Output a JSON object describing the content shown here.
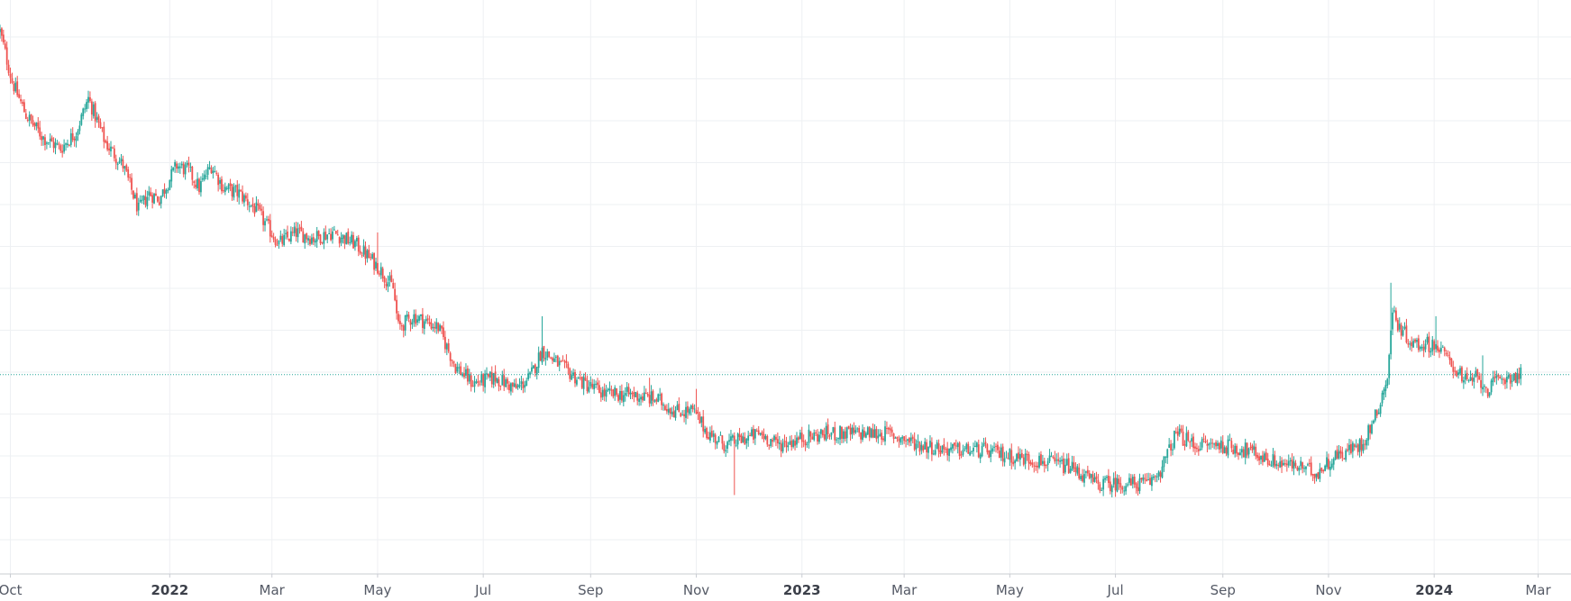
{
  "chart_data": {
    "type": "candlestick",
    "title": "",
    "xlabel": "",
    "ylabel": "",
    "x_range": [
      "2021-09-25",
      "2024-03-20"
    ],
    "y_range": [
      0.0,
      1.0
    ],
    "y_note": "price axis not shown; values relative",
    "grid": true,
    "colors": {
      "up": "#26a69a",
      "down": "#ef5350",
      "grid": "#eef0f3",
      "axis": "#555a66",
      "last_price_line": "#26a69a"
    },
    "last_value": 0.3456,
    "x_ticks": [
      {
        "date": "2021-10-01",
        "label": "Oct",
        "major": false
      },
      {
        "date": "2022-01-01",
        "label": "2022",
        "major": true
      },
      {
        "date": "2022-03-01",
        "label": "Mar",
        "major": false
      },
      {
        "date": "2022-05-01",
        "label": "May",
        "major": false
      },
      {
        "date": "2022-07-01",
        "label": "Jul",
        "major": false
      },
      {
        "date": "2022-09-01",
        "label": "Sep",
        "major": false
      },
      {
        "date": "2022-11-01",
        "label": "Nov",
        "major": false
      },
      {
        "date": "2023-01-01",
        "label": "2023",
        "major": true
      },
      {
        "date": "2023-03-01",
        "label": "Mar",
        "major": false
      },
      {
        "date": "2023-05-01",
        "label": "May",
        "major": false
      },
      {
        "date": "2023-07-01",
        "label": "Jul",
        "major": false
      },
      {
        "date": "2023-09-01",
        "label": "Sep",
        "major": false
      },
      {
        "date": "2023-11-01",
        "label": "Nov",
        "major": false
      },
      {
        "date": "2024-01-01",
        "label": "2024",
        "major": true
      },
      {
        "date": "2024-03-01",
        "label": "Mar",
        "major": false
      }
    ],
    "close_series": [
      [
        "2021-09-25",
        0.96
      ],
      [
        "2021-10-02",
        0.87
      ],
      [
        "2021-10-10",
        0.81
      ],
      [
        "2021-10-20",
        0.77
      ],
      [
        "2021-10-30",
        0.75
      ],
      [
        "2021-11-08",
        0.78
      ],
      [
        "2021-11-15",
        0.84
      ],
      [
        "2021-11-25",
        0.76
      ],
      [
        "2021-12-05",
        0.72
      ],
      [
        "2021-12-14",
        0.64
      ],
      [
        "2021-12-20",
        0.67
      ],
      [
        "2021-12-26",
        0.66
      ],
      [
        "2022-01-05",
        0.72
      ],
      [
        "2022-01-12",
        0.71
      ],
      [
        "2022-01-18",
        0.68
      ],
      [
        "2022-01-25",
        0.72
      ],
      [
        "2022-02-01",
        0.68
      ],
      [
        "2022-02-10",
        0.67
      ],
      [
        "2022-02-20",
        0.64
      ],
      [
        "2022-03-05",
        0.58
      ],
      [
        "2022-03-15",
        0.6
      ],
      [
        "2022-03-25",
        0.59
      ],
      [
        "2022-04-05",
        0.6
      ],
      [
        "2022-04-18",
        0.58
      ],
      [
        "2022-05-01",
        0.54
      ],
      [
        "2022-05-10",
        0.5
      ],
      [
        "2022-05-13",
        0.43
      ],
      [
        "2022-05-22",
        0.45
      ],
      [
        "2022-06-05",
        0.43
      ],
      [
        "2022-06-15",
        0.36
      ],
      [
        "2022-06-25",
        0.33
      ],
      [
        "2022-07-08",
        0.34
      ],
      [
        "2022-07-20",
        0.32
      ],
      [
        "2022-07-28",
        0.34
      ],
      [
        "2022-08-04",
        0.39
      ],
      [
        "2022-08-15",
        0.36
      ],
      [
        "2022-08-28",
        0.33
      ],
      [
        "2022-09-10",
        0.31
      ],
      [
        "2022-09-25",
        0.31
      ],
      [
        "2022-10-10",
        0.3
      ],
      [
        "2022-10-20",
        0.28
      ],
      [
        "2022-10-30",
        0.28
      ],
      [
        "2022-11-08",
        0.24
      ],
      [
        "2022-11-18",
        0.22
      ],
      [
        "2022-11-28",
        0.23
      ],
      [
        "2022-12-08",
        0.24
      ],
      [
        "2022-12-18",
        0.22
      ],
      [
        "2022-12-30",
        0.23
      ],
      [
        "2023-01-15",
        0.24
      ],
      [
        "2023-02-01",
        0.24
      ],
      [
        "2023-02-20",
        0.24
      ],
      [
        "2023-03-10",
        0.22
      ],
      [
        "2023-03-30",
        0.21
      ],
      [
        "2023-04-15",
        0.21
      ],
      [
        "2023-05-01",
        0.2
      ],
      [
        "2023-05-20",
        0.19
      ],
      [
        "2023-06-05",
        0.18
      ],
      [
        "2023-06-20",
        0.15
      ],
      [
        "2023-07-05",
        0.15
      ],
      [
        "2023-07-20",
        0.15
      ],
      [
        "2023-07-28",
        0.18
      ],
      [
        "2023-08-05",
        0.24
      ],
      [
        "2023-08-15",
        0.22
      ],
      [
        "2023-08-30",
        0.22
      ],
      [
        "2023-09-15",
        0.21
      ],
      [
        "2023-09-30",
        0.19
      ],
      [
        "2023-10-15",
        0.18
      ],
      [
        "2023-10-25",
        0.17
      ],
      [
        "2023-11-05",
        0.2
      ],
      [
        "2023-11-20",
        0.22
      ],
      [
        "2023-11-28",
        0.27
      ],
      [
        "2023-12-05",
        0.34
      ],
      [
        "2023-12-08",
        0.46
      ],
      [
        "2023-12-12",
        0.43
      ],
      [
        "2023-12-20",
        0.4
      ],
      [
        "2024-01-01",
        0.4
      ],
      [
        "2024-01-10",
        0.37
      ],
      [
        "2024-01-20",
        0.33
      ],
      [
        "2024-01-25",
        0.34
      ],
      [
        "2024-02-01",
        0.32
      ],
      [
        "2024-02-10",
        0.34
      ],
      [
        "2024-02-20",
        0.345
      ]
    ],
    "spikes": [
      [
        "2022-05-01",
        0.6
      ],
      [
        "2022-08-04",
        0.45
      ],
      [
        "2022-10-05",
        0.34
      ],
      [
        "2022-11-01",
        0.32
      ],
      [
        "2022-11-23",
        0.13
      ],
      [
        "2023-12-07",
        0.51
      ],
      [
        "2024-01-02",
        0.45
      ],
      [
        "2024-01-29",
        0.38
      ]
    ]
  }
}
